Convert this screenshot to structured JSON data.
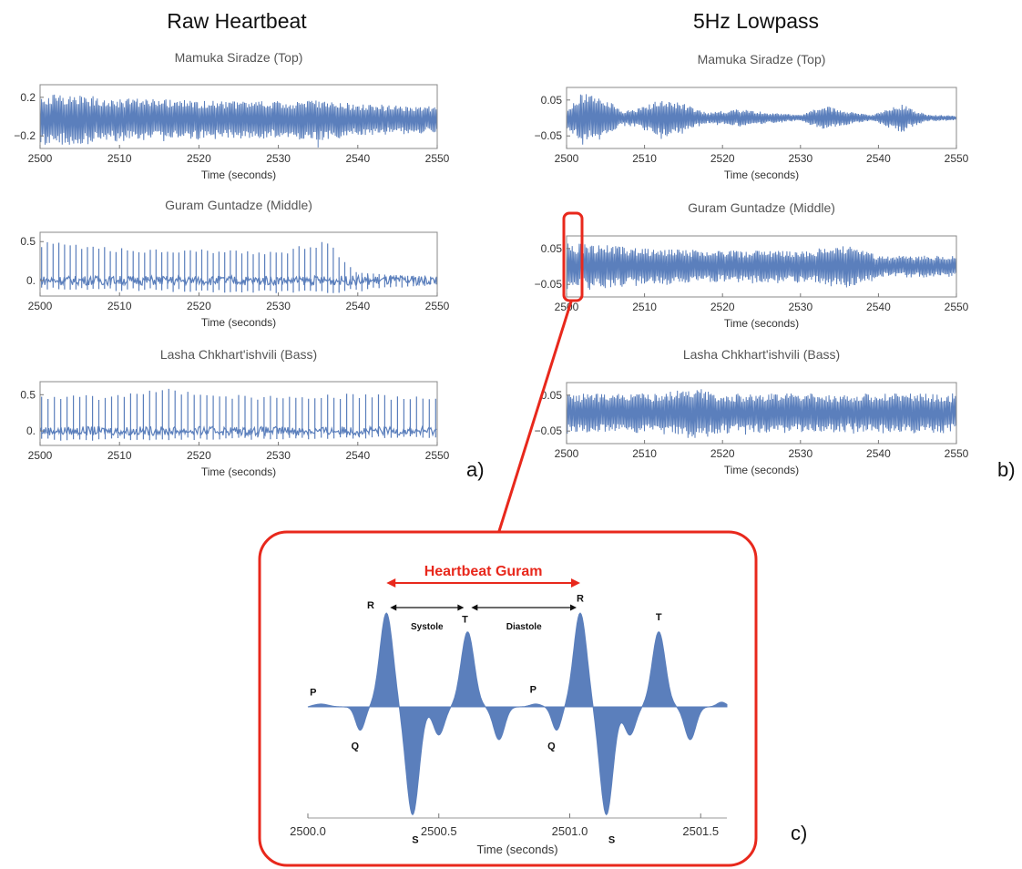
{
  "columns": {
    "left_title": "Raw Heartbeat",
    "right_title": "5Hz Lowpass",
    "left_label": "a)",
    "right_label": "b)",
    "inset_label": "c)"
  },
  "colors": {
    "signal": "#5b7fbc",
    "highlight": "#e8281c",
    "frame": "#888888"
  },
  "chart_data": [
    {
      "id": "raw-top",
      "type": "line",
      "panel": "a",
      "title": "Mamuka Siradze (Top)",
      "xlabel": "Time (seconds)",
      "xlim": [
        2500,
        2550
      ],
      "ylim": [
        -0.33,
        0.33
      ],
      "xticks": [
        2500,
        2510,
        2520,
        2530,
        2540,
        2550
      ],
      "yticks": [
        {
          "v": 0.2,
          "t": "0.2"
        },
        {
          "v": -0.2,
          "t": "−0.2"
        }
      ],
      "style": "dense",
      "amp_envelope": [
        [
          2500,
          0.27
        ],
        [
          2505,
          0.26
        ],
        [
          2510,
          0.22
        ],
        [
          2520,
          0.2
        ],
        [
          2530,
          0.19
        ],
        [
          2535,
          0.22
        ],
        [
          2540,
          0.16
        ],
        [
          2550,
          0.14
        ]
      ],
      "offset": -0.03,
      "spike": {
        "x": 2535,
        "y": -0.32
      }
    },
    {
      "id": "raw-middle",
      "type": "line",
      "panel": "a",
      "title": "Guram Guntadze (Middle)",
      "xlabel": "Time (seconds)",
      "xlim": [
        2500,
        2550
      ],
      "ylim": [
        -0.2,
        0.62
      ],
      "xticks": [
        2500,
        2510,
        2520,
        2530,
        2540,
        2550
      ],
      "yticks": [
        {
          "v": 0.5,
          "t": "0.5"
        },
        {
          "v": 0.0,
          "t": "0."
        }
      ],
      "style": "beats",
      "beat_period": 0.72,
      "baseline": 0.0,
      "peaks": [
        [
          2500,
          0.5
        ],
        [
          2505,
          0.48
        ],
        [
          2510,
          0.42
        ],
        [
          2520,
          0.4
        ],
        [
          2530,
          0.38
        ],
        [
          2536,
          0.52
        ],
        [
          2540,
          0.1
        ],
        [
          2550,
          0.05
        ]
      ],
      "troughs": [
        [
          2500,
          -0.12
        ],
        [
          2536,
          -0.18
        ],
        [
          2550,
          -0.06
        ]
      ]
    },
    {
      "id": "raw-bass",
      "type": "line",
      "panel": "a",
      "title": "Lasha Chkhart'ishvili (Bass)",
      "xlabel": "Time (seconds)",
      "xlim": [
        2500,
        2550
      ],
      "ylim": [
        -0.2,
        0.68
      ],
      "xticks": [
        2500,
        2510,
        2520,
        2530,
        2540,
        2550
      ],
      "yticks": [
        {
          "v": 0.5,
          "t": "0.5"
        },
        {
          "v": 0.0,
          "t": "0."
        }
      ],
      "style": "beats",
      "beat_period": 0.8,
      "baseline": 0.0,
      "peaks": [
        [
          2500,
          0.5
        ],
        [
          2510,
          0.5
        ],
        [
          2516,
          0.62
        ],
        [
          2520,
          0.52
        ],
        [
          2530,
          0.5
        ],
        [
          2540,
          0.52
        ],
        [
          2550,
          0.48
        ]
      ],
      "troughs": [
        [
          2500,
          -0.15
        ],
        [
          2550,
          -0.1
        ]
      ]
    },
    {
      "id": "lp-top",
      "type": "line",
      "panel": "b",
      "title": "Mamuka Siradze (Top)",
      "xlabel": "Time (seconds)",
      "xlim": [
        2500,
        2550
      ],
      "ylim": [
        -0.085,
        0.085
      ],
      "xticks": [
        2500,
        2510,
        2520,
        2530,
        2540,
        2550
      ],
      "yticks": [
        {
          "v": 0.05,
          "t": "0.05"
        },
        {
          "v": -0.05,
          "t": "−0.05"
        }
      ],
      "style": "dense",
      "offset": 0.0,
      "amp_envelope": [
        [
          2500,
          0.03
        ],
        [
          2502,
          0.07
        ],
        [
          2505,
          0.055
        ],
        [
          2507,
          0.02
        ],
        [
          2509,
          0.025
        ],
        [
          2512,
          0.055
        ],
        [
          2515,
          0.04
        ],
        [
          2518,
          0.015
        ],
        [
          2522,
          0.025
        ],
        [
          2526,
          0.015
        ],
        [
          2530,
          0.008
        ],
        [
          2533,
          0.035
        ],
        [
          2536,
          0.02
        ],
        [
          2539,
          0.008
        ],
        [
          2543,
          0.04
        ],
        [
          2546,
          0.01
        ],
        [
          2550,
          0.006
        ]
      ]
    },
    {
      "id": "lp-middle",
      "type": "line",
      "panel": "b",
      "title": "Guram Guntadze (Middle)",
      "xlabel": "Time (seconds)",
      "xlim": [
        2500,
        2550
      ],
      "ylim": [
        -0.085,
        0.085
      ],
      "xticks": [
        2500,
        2510,
        2520,
        2530,
        2540,
        2550
      ],
      "yticks": [
        {
          "v": 0.05,
          "t": "0.05"
        },
        {
          "v": -0.05,
          "t": "−0.05"
        }
      ],
      "style": "dense",
      "offset": 0.0,
      "beat_period": 0.72,
      "amp_envelope": [
        [
          2500,
          0.065
        ],
        [
          2505,
          0.06
        ],
        [
          2510,
          0.05
        ],
        [
          2520,
          0.045
        ],
        [
          2530,
          0.045
        ],
        [
          2537,
          0.06
        ],
        [
          2540,
          0.03
        ],
        [
          2545,
          0.03
        ],
        [
          2550,
          0.03
        ]
      ]
    },
    {
      "id": "lp-bass",
      "type": "line",
      "panel": "b",
      "title": "Lasha Chkhart'ishvili (Bass)",
      "xlabel": "Time (seconds)",
      "xlim": [
        2500,
        2550
      ],
      "ylim": [
        -0.085,
        0.085
      ],
      "xticks": [
        2500,
        2510,
        2520,
        2530,
        2540,
        2550
      ],
      "yticks": [
        {
          "v": 0.05,
          "t": "0.05"
        },
        {
          "v": -0.05,
          "t": "−0.05"
        }
      ],
      "style": "dense",
      "offset": 0.0,
      "beat_period": 0.8,
      "amp_envelope": [
        [
          2500,
          0.055
        ],
        [
          2510,
          0.055
        ],
        [
          2517,
          0.07
        ],
        [
          2520,
          0.055
        ],
        [
          2530,
          0.055
        ],
        [
          2540,
          0.055
        ],
        [
          2550,
          0.055
        ]
      ]
    },
    {
      "id": "inset",
      "type": "area",
      "panel": "c",
      "title": "Heartbeat Guram",
      "xlabel": "Time (seconds)",
      "xlim": [
        2500.0,
        2501.6
      ],
      "ylim": [
        -0.1,
        0.1
      ],
      "xticks": [
        {
          "v": 2500.0,
          "t": "2500.0"
        },
        {
          "v": 2500.5,
          "t": "2500.5"
        },
        {
          "v": 2501.0,
          "t": "2501.0"
        },
        {
          "v": 2501.5,
          "t": "2501.5"
        }
      ],
      "waves": [
        {
          "x": 2500.05,
          "y": 0.003,
          "w": 0.04
        },
        {
          "x": 2500.2,
          "y": -0.025,
          "w": 0.025
        },
        {
          "x": 2500.3,
          "y": 0.1,
          "w": 0.035
        },
        {
          "x": 2500.4,
          "y": -0.115,
          "w": 0.035
        },
        {
          "x": 2500.5,
          "y": -0.03,
          "w": 0.03
        },
        {
          "x": 2500.61,
          "y": 0.08,
          "w": 0.035
        },
        {
          "x": 2500.73,
          "y": -0.035,
          "w": 0.03
        },
        {
          "x": 2500.87,
          "y": 0.003,
          "w": 0.03
        },
        {
          "x": 2500.95,
          "y": -0.025,
          "w": 0.025
        },
        {
          "x": 2501.04,
          "y": 0.1,
          "w": 0.035
        },
        {
          "x": 2501.14,
          "y": -0.115,
          "w": 0.035
        },
        {
          "x": 2501.23,
          "y": -0.03,
          "w": 0.03
        },
        {
          "x": 2501.34,
          "y": 0.08,
          "w": 0.035
        },
        {
          "x": 2501.46,
          "y": -0.035,
          "w": 0.03
        },
        {
          "x": 2501.58,
          "y": 0.005,
          "w": 0.025
        }
      ],
      "annotations": [
        {
          "text": "P",
          "x": 2500.02,
          "y": 0.012
        },
        {
          "text": "Q",
          "x": 2500.18,
          "y": -0.045
        },
        {
          "text": "R",
          "x": 2500.24,
          "y": 0.105
        },
        {
          "text": "S",
          "x": 2500.41,
          "y": -0.145
        },
        {
          "text": "T",
          "x": 2500.6,
          "y": 0.09
        },
        {
          "text": "P",
          "x": 2500.86,
          "y": 0.015
        },
        {
          "text": "Q",
          "x": 2500.93,
          "y": -0.045
        },
        {
          "text": "R",
          "x": 2501.04,
          "y": 0.112
        },
        {
          "text": "S",
          "x": 2501.16,
          "y": -0.145
        },
        {
          "text": "T",
          "x": 2501.34,
          "y": 0.092
        }
      ],
      "intervals": [
        {
          "text": "Systole",
          "x0": 2500.3,
          "x1": 2500.61
        },
        {
          "text": "Diastole",
          "x0": 2500.61,
          "x1": 2501.04
        }
      ],
      "heartbeat_span": {
        "x0": 2500.3,
        "x1": 2501.04
      }
    }
  ]
}
